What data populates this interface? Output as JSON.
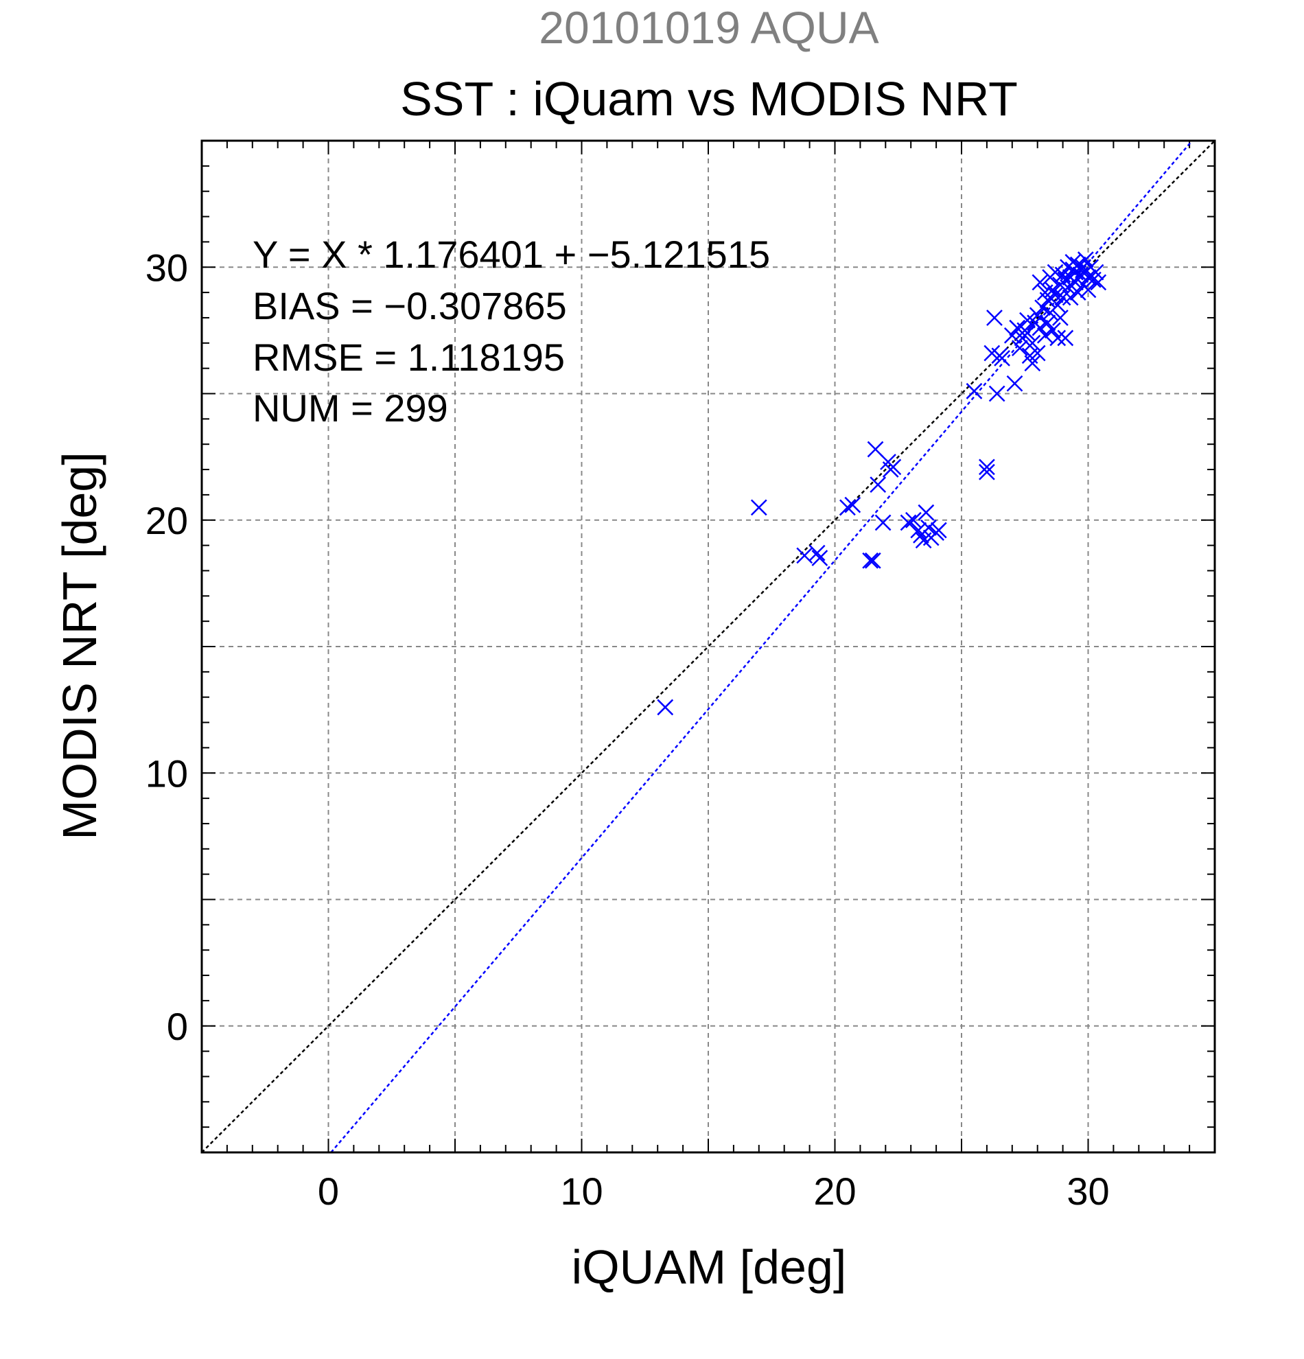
{
  "chart_data": {
    "type": "scatter",
    "supertitle": "20101019 AQUA",
    "title": "SST : iQuam vs MODIS NRT",
    "xlabel": "iQUAM [deg]",
    "ylabel": "MODIS NRT [deg]",
    "xlim": [
      -5,
      35
    ],
    "ylim": [
      -5,
      35
    ],
    "xticks": [
      0,
      10,
      20,
      30
    ],
    "yticks": [
      0,
      10,
      20,
      30
    ],
    "grid": true,
    "marker": "x",
    "colors": {
      "points": "#0000ff",
      "fit_line": "#0000ff",
      "identity_line": "#000000",
      "grid": "#888888",
      "supertitle": "#808080"
    },
    "annotations": [
      "Y = X * 1.176401 + −5.121515",
      "BIAS = −0.307865",
      "RMSE = 1.118195",
      "NUM = 299"
    ],
    "fit": {
      "slope": 1.176401,
      "intercept": -5.121515
    },
    "identity": {
      "slope": 1,
      "intercept": 0
    },
    "series": [
      {
        "points": [
          [
            13.3,
            12.6
          ],
          [
            17.0,
            20.5
          ],
          [
            18.8,
            18.6
          ],
          [
            19.3,
            18.7
          ],
          [
            19.4,
            18.5
          ],
          [
            20.5,
            20.5
          ],
          [
            20.7,
            20.6
          ],
          [
            21.4,
            18.4
          ],
          [
            21.5,
            18.4
          ],
          [
            21.6,
            22.8
          ],
          [
            21.7,
            21.4
          ],
          [
            21.9,
            19.9
          ],
          [
            22.1,
            22.3
          ],
          [
            22.2,
            22.0
          ],
          [
            22.3,
            22.1
          ],
          [
            22.9,
            19.9
          ],
          [
            23.1,
            20.0
          ],
          [
            23.3,
            19.6
          ],
          [
            23.4,
            19.4
          ],
          [
            23.5,
            19.2
          ],
          [
            23.6,
            20.3
          ],
          [
            23.7,
            19.7
          ],
          [
            23.8,
            19.3
          ],
          [
            24.0,
            19.5
          ],
          [
            24.1,
            19.6
          ],
          [
            25.5,
            25.1
          ],
          [
            26.0,
            22.1
          ],
          [
            26.0,
            21.9
          ],
          [
            26.2,
            26.6
          ],
          [
            26.3,
            28.0
          ],
          [
            26.4,
            25.0
          ],
          [
            26.5,
            26.5
          ],
          [
            26.6,
            26.4
          ],
          [
            27.0,
            27.3
          ],
          [
            27.1,
            25.4
          ],
          [
            27.2,
            27.6
          ],
          [
            27.3,
            26.8
          ],
          [
            27.4,
            27.2
          ],
          [
            27.5,
            27.5
          ],
          [
            27.6,
            27.4
          ],
          [
            27.6,
            27.9
          ],
          [
            27.7,
            26.5
          ],
          [
            27.8,
            26.2
          ],
          [
            27.8,
            27.0
          ],
          [
            27.9,
            27.8
          ],
          [
            28.0,
            28.1
          ],
          [
            28.0,
            26.6
          ],
          [
            28.1,
            27.6
          ],
          [
            28.1,
            29.4
          ],
          [
            28.2,
            28.4
          ],
          [
            28.3,
            27.3
          ],
          [
            28.3,
            29.0
          ],
          [
            28.4,
            28.7
          ],
          [
            28.4,
            27.8
          ],
          [
            28.5,
            29.6
          ],
          [
            28.5,
            28.2
          ],
          [
            28.6,
            29.1
          ],
          [
            28.6,
            27.5
          ],
          [
            28.7,
            28.9
          ],
          [
            28.7,
            29.8
          ],
          [
            28.8,
            28.5
          ],
          [
            28.8,
            27.2
          ],
          [
            28.9,
            29.3
          ],
          [
            28.9,
            28.0
          ],
          [
            29.0,
            29.7
          ],
          [
            29.0,
            28.8
          ],
          [
            29.1,
            29.5
          ],
          [
            29.1,
            27.2
          ],
          [
            29.2,
            30.0
          ],
          [
            29.2,
            29.2
          ],
          [
            29.3,
            29.6
          ],
          [
            29.3,
            28.8
          ],
          [
            29.4,
            29.9
          ],
          [
            29.4,
            30.2
          ],
          [
            29.5,
            29.4
          ],
          [
            29.5,
            29.8
          ],
          [
            29.6,
            30.1
          ],
          [
            29.6,
            29.0
          ],
          [
            29.7,
            29.7
          ],
          [
            29.8,
            30.0
          ],
          [
            29.8,
            29.3
          ],
          [
            29.9,
            30.3
          ],
          [
            30.0,
            29.6
          ],
          [
            30.0,
            29.1
          ],
          [
            30.1,
            30.0
          ],
          [
            30.2,
            29.5
          ],
          [
            30.3,
            29.8
          ],
          [
            30.4,
            29.4
          ]
        ]
      }
    ]
  }
}
